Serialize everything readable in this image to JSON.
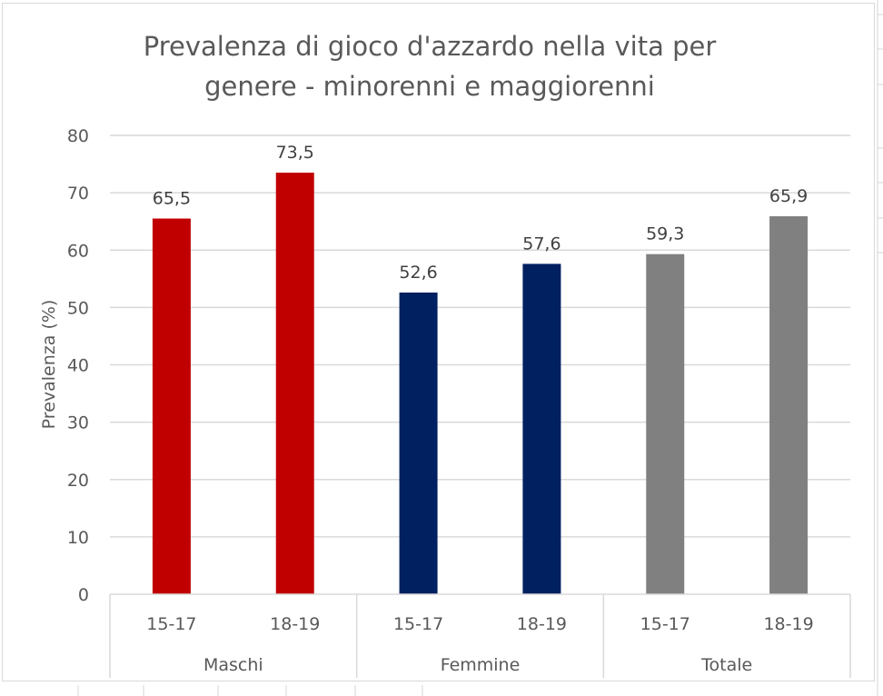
{
  "chart_data": {
    "type": "bar",
    "title": [
      "Prevalenza di gioco d'azzardo nella vita per",
      "genere - minorenni e maggiorenni"
    ],
    "xlabel": "",
    "ylabel": "Prevalenza (%)",
    "ylim": [
      0,
      80
    ],
    "yticks": [
      0,
      10,
      20,
      30,
      40,
      50,
      60,
      70,
      80
    ],
    "grid": true,
    "legend": "none",
    "groups": [
      {
        "name": "Maschi",
        "color": "#c00000",
        "categories": [
          "15-17",
          "18-19"
        ],
        "values": [
          65.5,
          73.5
        ],
        "labels": [
          "65,5",
          "73,5"
        ]
      },
      {
        "name": "Femmine",
        "color": "#002060",
        "categories": [
          "15-17",
          "18-19"
        ],
        "values": [
          52.6,
          57.6
        ],
        "labels": [
          "52,6",
          "57,6"
        ]
      },
      {
        "name": "Totale",
        "color": "#808080",
        "categories": [
          "15-17",
          "18-19"
        ],
        "values": [
          59.3,
          65.9
        ],
        "labels": [
          "59,3",
          "65,9"
        ]
      }
    ]
  },
  "colors": {
    "gridline": "#d9d9d9",
    "text": "#595959",
    "data_label": "#404040"
  }
}
